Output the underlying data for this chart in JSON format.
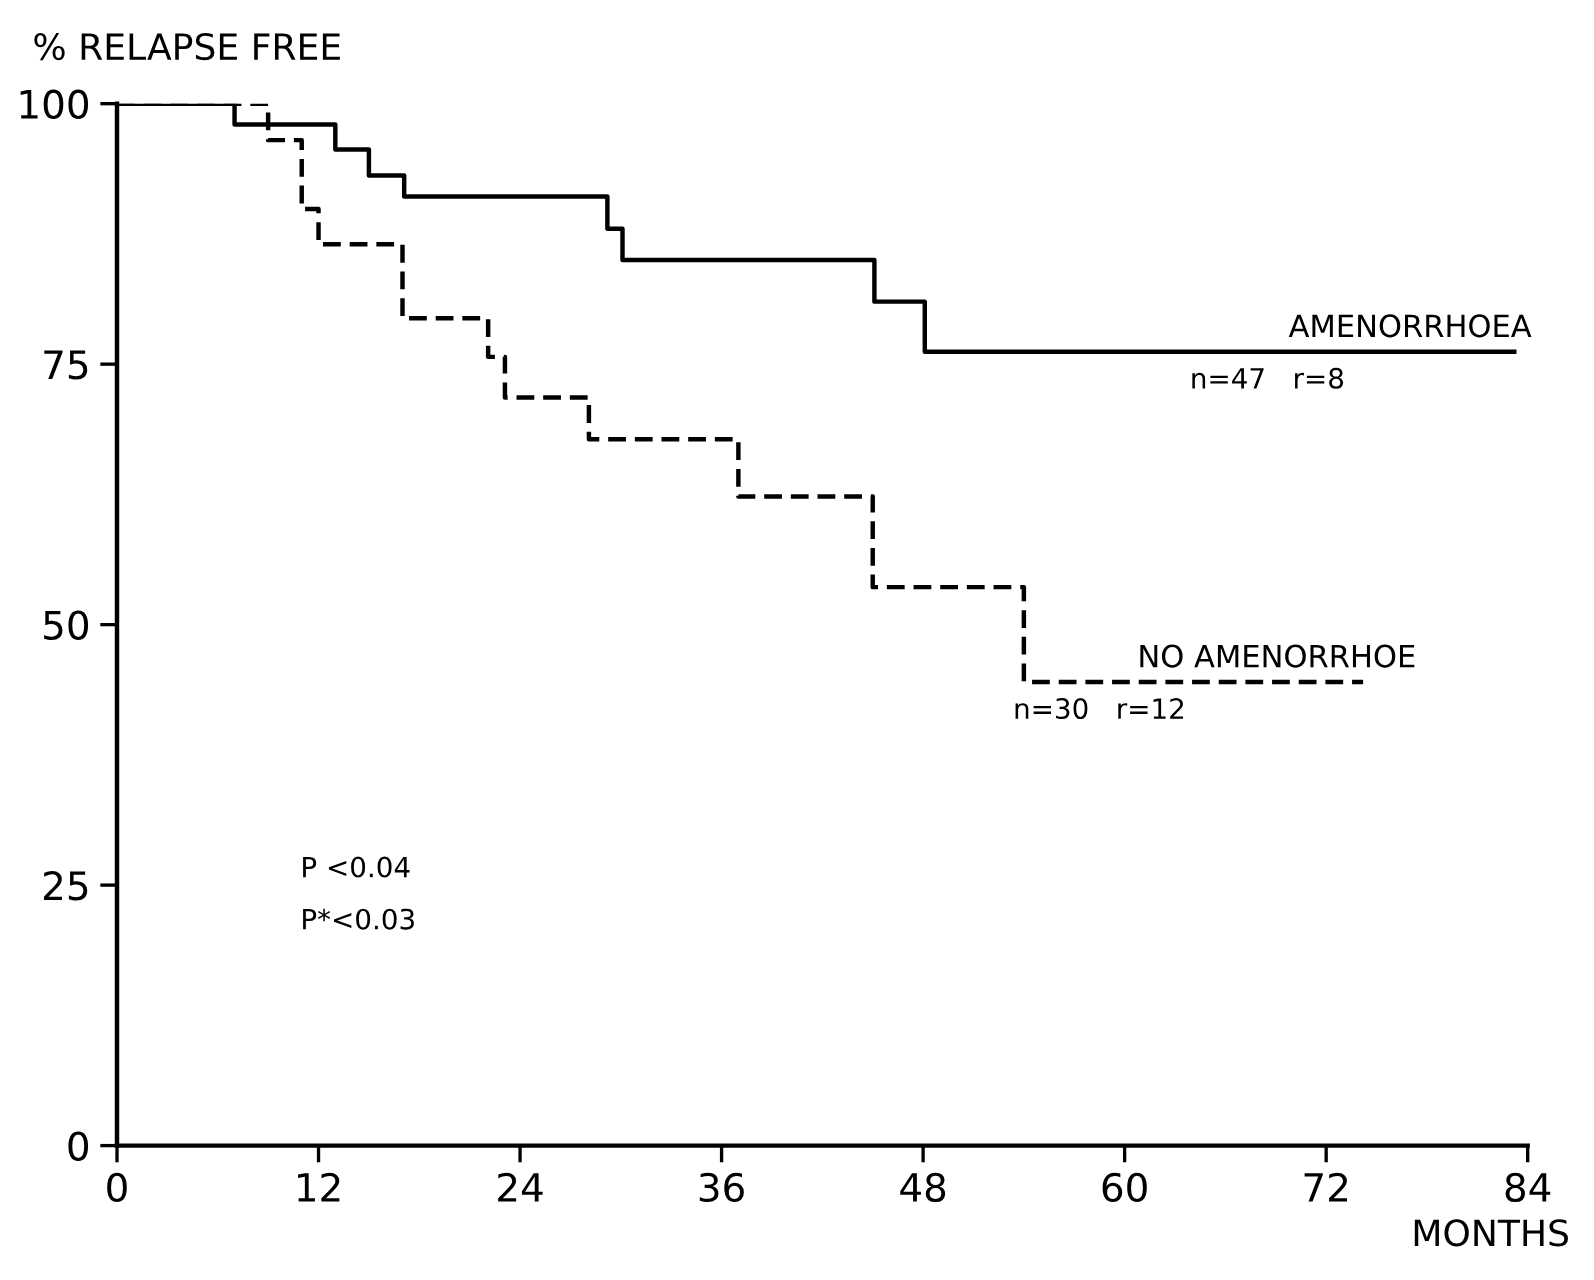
{
  "chart_data": {
    "type": "step",
    "ylabel": "% RELAPSE FREE",
    "xlabel": "MONTHS",
    "xlim": [
      0,
      84
    ],
    "xticks": [
      0,
      12,
      24,
      36,
      48,
      60,
      72,
      84
    ],
    "ylim": [
      0,
      100
    ],
    "yticks": [
      0,
      25,
      50,
      75,
      100
    ],
    "grid": false,
    "legend": false,
    "marker": "none",
    "series": [
      {
        "name": "AMENORRHOEA",
        "color": "#000000",
        "line_style": "solid",
        "x": [
          0,
          7.0,
          13.0,
          15.0,
          17.1,
          29.2,
          30.1,
          45.1,
          48.1,
          83.2
        ],
        "values": [
          100,
          98.0,
          95.6,
          93.1,
          91.1,
          88.0,
          85.0,
          81.0,
          76.2,
          76.2
        ]
      },
      {
        "name": "NO AMENORRHOE",
        "color": "#000000",
        "line_style": "dashed",
        "x": [
          0,
          9.0,
          11.0,
          12.0,
          17.0,
          22.1,
          23.1,
          28.1,
          37.0,
          45.0,
          54.0,
          74.2
        ],
        "values": [
          100,
          96.5,
          89.9,
          86.5,
          79.4,
          75.7,
          71.8,
          67.8,
          62.3,
          53.6,
          44.5,
          44.5
        ]
      }
    ],
    "annotations": [
      {
        "text": "n=47   r=8",
        "x": 68.5,
        "y": 76.2
      },
      {
        "text": "n=30   r=12",
        "x": 58.5,
        "y": 44.5
      },
      "P <0.04",
      "P*<0.03"
    ]
  }
}
